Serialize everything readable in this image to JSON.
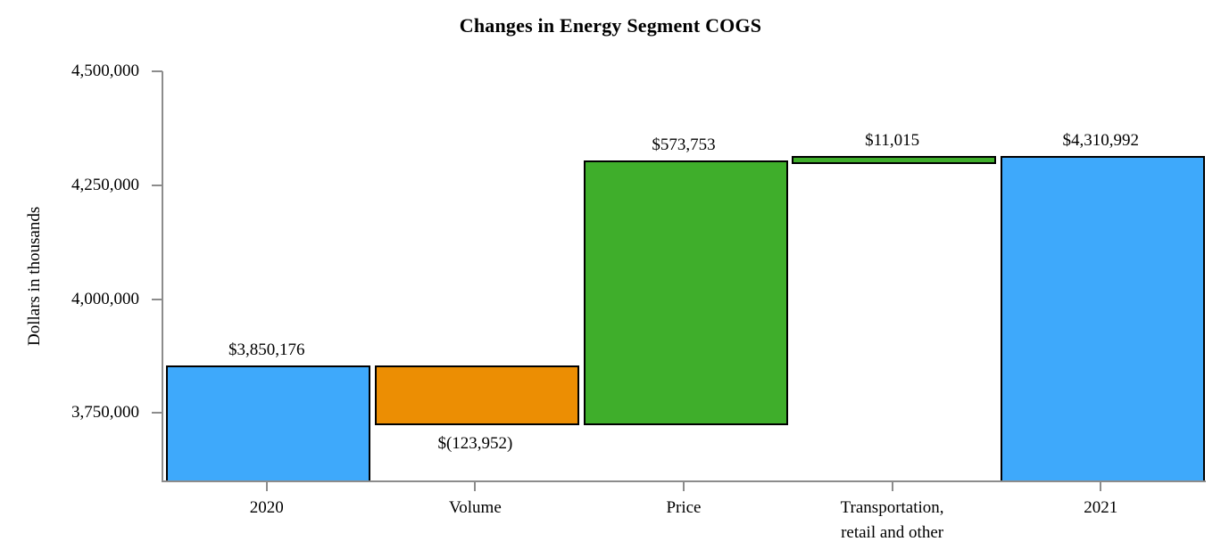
{
  "chart_data": {
    "type": "bar",
    "subtype": "waterfall",
    "title": "Changes in Energy Segment COGS",
    "ylabel": "Dollars in thousands",
    "xlabel": "",
    "grid": false,
    "legend": "none",
    "axis": {
      "ymin": 3600000,
      "ymax": 4500000,
      "yticks": [
        {
          "value": 4500000,
          "label": "4,500,000"
        },
        {
          "value": 4250000,
          "label": "4,250,000"
        },
        {
          "value": 4000000,
          "label": "4,000,000"
        },
        {
          "value": 3750000,
          "label": "3,750,000"
        }
      ]
    },
    "categories": [
      "2020",
      "Volume",
      "Price",
      "Transportation, retail and other",
      "2021"
    ],
    "bars": [
      {
        "category": "2020",
        "category_lines": [
          "2020"
        ],
        "kind": "total",
        "value": 3850176,
        "display": "$3,850,176",
        "from": 3600000,
        "to": 3850176,
        "color": "blue",
        "label_side": "above"
      },
      {
        "category": "Volume",
        "category_lines": [
          "Volume"
        ],
        "kind": "decrease",
        "value": -123952,
        "display": "$(123,952)",
        "from": 3726224,
        "to": 3850176,
        "color": "orange",
        "label_side": "below"
      },
      {
        "category": "Price",
        "category_lines": [
          "Price"
        ],
        "kind": "increase",
        "value": 573753,
        "display": "$573,753",
        "from": 3726224,
        "to": 4299977,
        "color": "green",
        "label_side": "above"
      },
      {
        "category": "Transportation, retail and other",
        "category_lines": [
          "Transportation,",
          "retail and other"
        ],
        "kind": "increase",
        "value": 11015,
        "display": "$11,015",
        "from": 4299977,
        "to": 4310992,
        "color": "green",
        "label_side": "above"
      },
      {
        "category": "2021",
        "category_lines": [
          "2021"
        ],
        "kind": "total",
        "value": 4310992,
        "display": "$4,310,992",
        "from": 3600000,
        "to": 4310992,
        "color": "blue",
        "label_side": "above"
      }
    ],
    "colors": {
      "blue": "#3EA9FB",
      "orange": "#EC8E03",
      "green": "#3FAE2B",
      "bar_border": "#000000",
      "axis": "#8C8C8C",
      "text": "#000000"
    }
  }
}
